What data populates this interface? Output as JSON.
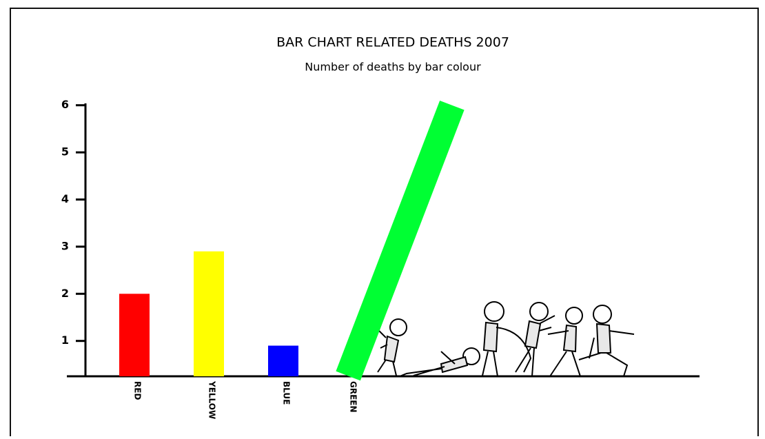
{
  "chart_data": {
    "type": "bar",
    "title": "BAR CHART RELATED DEATHS 2007",
    "subtitle": "Number of deaths by bar colour",
    "categories": [
      "RED",
      "YELLOW",
      "BLUE",
      "GREEN"
    ],
    "values": [
      2,
      2.9,
      0.9,
      6.4
    ],
    "colors": [
      "#ff0000",
      "#ffff00",
      "#0000ff",
      "#00ff33"
    ],
    "ylim": [
      0.25,
      6.5
    ],
    "yticks": [
      1,
      2,
      3,
      4,
      5,
      6
    ]
  }
}
